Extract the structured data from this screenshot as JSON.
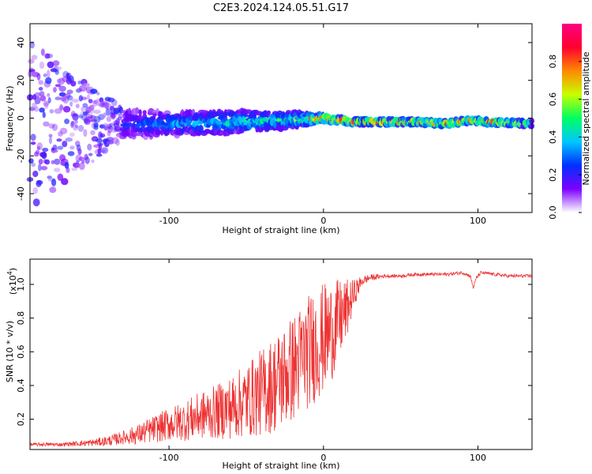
{
  "title": "C2E3.2024.124.05.51.G17",
  "colors": {
    "snr_line": "#ee3333",
    "frame": "#000000"
  },
  "chart_data": [
    {
      "type": "heatmap",
      "xlabel": "Height of straight line (km)",
      "ylabel": "Frequency (Hz)",
      "xlim": [
        -190,
        135
      ],
      "ylim": [
        -50,
        50
      ],
      "xticks": [
        -100,
        0,
        100
      ],
      "yticks": [
        -40,
        -20,
        0,
        20,
        40
      ],
      "xticklabels": [
        "-100",
        "0",
        "100"
      ],
      "yticklabels": [
        "-40",
        "-20",
        "0",
        "20",
        "40"
      ],
      "colorbar": {
        "label": "Normalized spectral amplitude",
        "range": [
          0,
          1
        ],
        "ticks": [
          0.0,
          0.2,
          0.4,
          0.6,
          0.8
        ],
        "ticklabels": [
          "0.0",
          "0.2",
          "0.4",
          "0.6",
          "0.8"
        ],
        "colormap": [
          "#ffffff",
          "#7b00ff",
          "#0030ff",
          "#00c8ff",
          "#00ff60",
          "#c8ff00",
          "#ff8800",
          "#ff0030",
          "#ff0080"
        ]
      },
      "ridge": [
        {
          "x": -190,
          "f": -3,
          "spread": 45,
          "amp": 0.12
        },
        {
          "x": -130,
          "f": -3,
          "spread": 8,
          "amp": 0.25
        },
        {
          "x": -100,
          "f": -3,
          "spread": 6,
          "amp": 0.35
        },
        {
          "x": -60,
          "f": -2,
          "spread": 6,
          "amp": 0.45
        },
        {
          "x": -20,
          "f": -1,
          "spread": 4,
          "amp": 0.5
        },
        {
          "x": 0,
          "f": 0,
          "spread": 2,
          "amp": 0.95
        },
        {
          "x": 20,
          "f": -2,
          "spread": 1.5,
          "amp": 0.9
        },
        {
          "x": 60,
          "f": -2,
          "spread": 1.5,
          "amp": 0.85
        },
        {
          "x": 80,
          "f": -3,
          "spread": 1.5,
          "amp": 0.95
        },
        {
          "x": 95,
          "f": -1,
          "spread": 1.5,
          "amp": 0.8
        },
        {
          "x": 105,
          "f": -2,
          "spread": 1.5,
          "amp": 0.9
        },
        {
          "x": 135,
          "f": -3,
          "spread": 1.5,
          "amp": 0.6
        }
      ]
    },
    {
      "type": "line",
      "xlabel": "Height of straight line (km)",
      "ylabel": "SNR (10 * v/v)",
      "y_multiplier_label": "(x10",
      "y_multiplier_exp": "4",
      "xlim": [
        -190,
        135
      ],
      "ylim": [
        0.02,
        1.15
      ],
      "xticks": [
        -100,
        0,
        100
      ],
      "xticklabels": [
        "-100",
        "0",
        "100"
      ],
      "yticks": [
        0.2,
        0.4,
        0.6,
        0.8,
        1.0
      ],
      "yticklabels": [
        "0.2",
        "0.4",
        "0.6",
        "0.8",
        "1.0"
      ],
      "series": [
        {
          "x": [
            -190,
            -170,
            -150,
            -140,
            -130,
            -120,
            -110,
            -100,
            -90,
            -80,
            -70,
            -60,
            -50,
            -40,
            -30,
            -20,
            -15,
            -10,
            -5,
            0,
            5,
            10,
            15,
            20,
            25,
            30,
            40,
            50,
            60,
            70,
            80,
            90,
            95,
            97,
            99,
            102,
            110,
            120,
            135
          ],
          "y": [
            0.05,
            0.05,
            0.06,
            0.07,
            0.09,
            0.11,
            0.14,
            0.17,
            0.19,
            0.22,
            0.24,
            0.27,
            0.31,
            0.36,
            0.42,
            0.5,
            0.55,
            0.6,
            0.64,
            0.68,
            0.72,
            0.78,
            0.85,
            0.95,
            1.02,
            1.04,
            1.05,
            1.05,
            1.06,
            1.06,
            1.06,
            1.07,
            1.05,
            0.98,
            1.04,
            1.07,
            1.06,
            1.05,
            1.05
          ],
          "noise": [
            0.01,
            0.01,
            0.02,
            0.03,
            0.04,
            0.06,
            0.08,
            0.1,
            0.12,
            0.14,
            0.16,
            0.19,
            0.22,
            0.26,
            0.3,
            0.32,
            0.33,
            0.34,
            0.34,
            0.33,
            0.3,
            0.25,
            0.18,
            0.08,
            0.03,
            0.02,
            0.01,
            0.01,
            0.01,
            0.01,
            0.01,
            0.01,
            0.01,
            0.01,
            0.01,
            0.01,
            0.01,
            0.01,
            0.01
          ]
        }
      ]
    }
  ]
}
